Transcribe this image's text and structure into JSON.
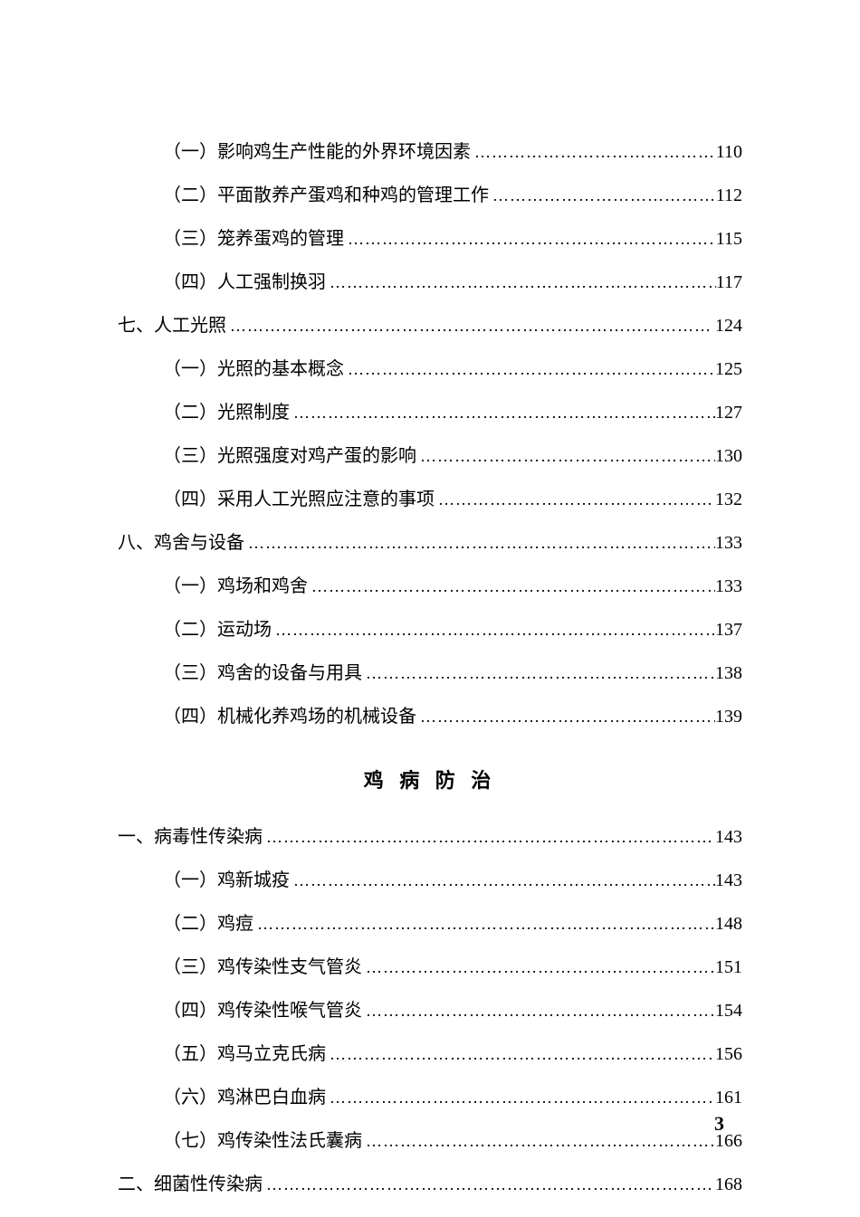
{
  "page_number": "3",
  "section_title": "鸡 病 防 治",
  "dots_fill": "…………………………………………………………………………",
  "entries_top": [
    {
      "level": 2,
      "label": "（一）影响鸡生产性能的外界环境因素",
      "page": "110"
    },
    {
      "level": 2,
      "label": "（二）平面散养产蛋鸡和种鸡的管理工作",
      "page": "112"
    },
    {
      "level": 2,
      "label": "（三）笼养蛋鸡的管理",
      "page": "115"
    },
    {
      "level": 2,
      "label": "（四）人工强制换羽",
      "page": "117"
    },
    {
      "level": 1,
      "label": "七、人工光照",
      "page": "124"
    },
    {
      "level": 2,
      "label": "（一）光照的基本概念",
      "page": "125"
    },
    {
      "level": 2,
      "label": "（二）光照制度",
      "page": "127"
    },
    {
      "level": 2,
      "label": "（三）光照强度对鸡产蛋的影响",
      "page": "130"
    },
    {
      "level": 2,
      "label": "（四）采用人工光照应注意的事项",
      "page": "132"
    },
    {
      "level": 1,
      "label": "八、鸡舍与设备",
      "page": "133"
    },
    {
      "level": 2,
      "label": "（一）鸡场和鸡舍",
      "page": "133"
    },
    {
      "level": 2,
      "label": "（二）运动场",
      "page": "137"
    },
    {
      "level": 2,
      "label": "（三）鸡舍的设备与用具",
      "page": "138"
    },
    {
      "level": 2,
      "label": "（四）机械化养鸡场的机械设备",
      "page": "139"
    }
  ],
  "entries_bottom": [
    {
      "level": 1,
      "label": "一、病毒性传染病",
      "page": "143"
    },
    {
      "level": 2,
      "label": "（一）鸡新城疫",
      "page": "143"
    },
    {
      "level": 2,
      "label": "（二）鸡痘",
      "page": "148"
    },
    {
      "level": 2,
      "label": "（三）鸡传染性支气管炎",
      "page": "151"
    },
    {
      "level": 2,
      "label": "（四）鸡传染性喉气管炎",
      "page": "154"
    },
    {
      "level": 2,
      "label": "（五）鸡马立克氏病",
      "page": "156"
    },
    {
      "level": 2,
      "label": "（六）鸡淋巴白血病",
      "page": "161"
    },
    {
      "level": 2,
      "label": "（七）鸡传染性法氏囊病",
      "page": "166"
    },
    {
      "level": 1,
      "label": "二、细菌性传染病",
      "page": "168"
    }
  ]
}
